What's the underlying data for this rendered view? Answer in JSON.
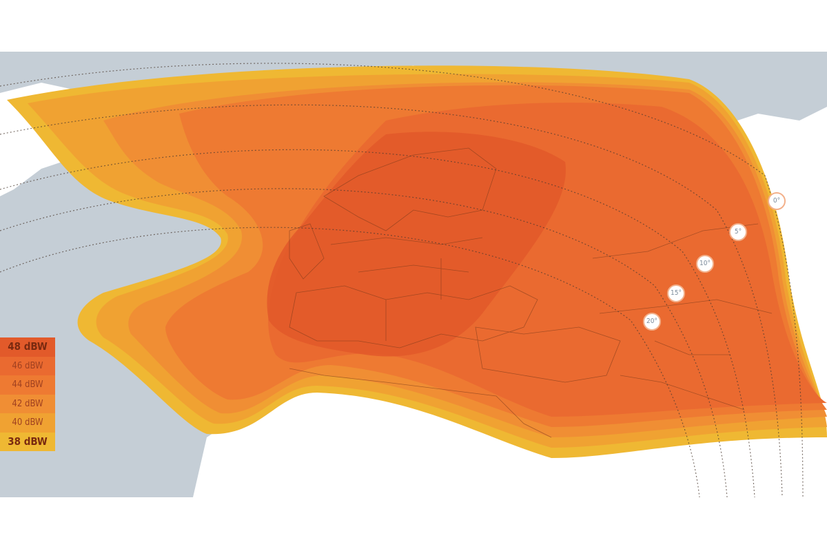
{
  "legend": [
    {
      "label": "48 dBW",
      "color": "#e25a2a"
    },
    {
      "label": "46 dBW",
      "color": "#ea6a30"
    },
    {
      "label": "44 dBW",
      "color": "#ee7a32"
    },
    {
      "label": "42 dBW",
      "color": "#f08e34"
    },
    {
      "label": "40 dBW",
      "color": "#f0a232"
    },
    {
      "label": "38 dBW",
      "color": "#efb833"
    }
  ],
  "elevation_labels": [
    "0°",
    "5°",
    "10°",
    "15°",
    "20°"
  ],
  "colors": {
    "ocean": "#c5ced6",
    "land": "#ffffff",
    "border": "#6a3a20"
  }
}
